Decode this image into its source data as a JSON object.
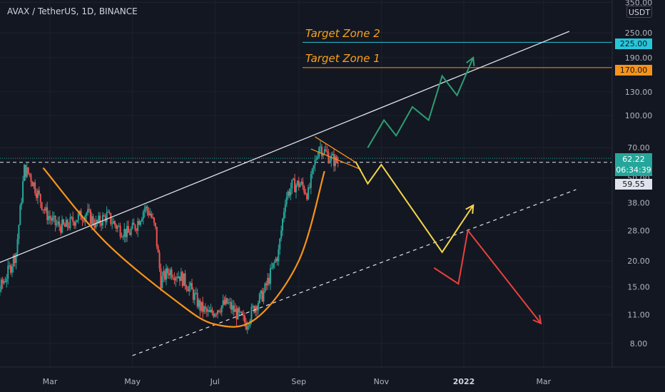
{
  "header": {
    "symbol_title": "AVAX / TetherUS, 1D, BINANCE",
    "currency_badge": "USDT"
  },
  "annotations": {
    "target_zone_2": {
      "label": "Target Zone 2",
      "price": 225.0,
      "color": "#26c6da"
    },
    "target_zone_1": {
      "label": "Target Zone 1",
      "price": 170.0,
      "color": "#f7931a"
    }
  },
  "price_tags": {
    "target2": "225.00",
    "target1": "170.00",
    "last_price": "62.22",
    "countdown": "06:34:39",
    "prev_level": "59.55"
  },
  "colors": {
    "background": "#131722",
    "up_candle": "#26a69a",
    "down_candle": "#ef5350",
    "cup_curve": "#f7931a",
    "channel_line": "#e0e3eb",
    "path_bull": "#2e9e73",
    "path_base": "#f6d54a",
    "path_bear": "#e8413d"
  },
  "chart_data": {
    "type": "candlestick",
    "title": "AVAX / TetherUS, 1D, BINANCE",
    "y_scale": "log",
    "ylim": [
      7,
      350
    ],
    "y_ticks": [
      350,
      250,
      190,
      130,
      100,
      70,
      50,
      38,
      28,
      20,
      15,
      11,
      8
    ],
    "y_tick_labels": [
      "350.00",
      "250.00",
      "190.00",
      "130.00",
      "100.00",
      "70.00",
      "50.00",
      "38.00",
      "28.00",
      "20.00",
      "15.00",
      "11.00",
      "8.00"
    ],
    "x_ticks": [
      {
        "label": "Mar",
        "date": "2021-03-01"
      },
      {
        "label": "May",
        "date": "2021-05-01"
      },
      {
        "label": "Jul",
        "date": "2021-07-01"
      },
      {
        "label": "Sep",
        "date": "2021-09-01"
      },
      {
        "label": "Nov",
        "date": "2021-11-01"
      },
      {
        "label": "2022",
        "date": "2022-01-01"
      },
      {
        "label": "Mar",
        "date": "2022-03-01"
      }
    ],
    "xlim": [
      "2021-01-04",
      "2022-04-18"
    ],
    "last_price": 62.22,
    "horizontal_levels": [
      225.0,
      170.0,
      62.22,
      59.55
    ],
    "price_path": [
      [
        "2021-01-04",
        13.0
      ],
      [
        "2021-01-12",
        12.0
      ],
      [
        "2021-01-20",
        13.5
      ],
      [
        "2021-01-28",
        17.0
      ],
      [
        "2021-02-04",
        22.0
      ],
      [
        "2021-02-10",
        55.0
      ],
      [
        "2021-02-14",
        52.0
      ],
      [
        "2021-02-20",
        42.0
      ],
      [
        "2021-02-26",
        34.0
      ],
      [
        "2021-03-05",
        30.0
      ],
      [
        "2021-03-12",
        29.0
      ],
      [
        "2021-03-20",
        32.0
      ],
      [
        "2021-03-28",
        34.0
      ],
      [
        "2021-04-04",
        30.0
      ],
      [
        "2021-04-12",
        33.0
      ],
      [
        "2021-04-20",
        29.0
      ],
      [
        "2021-04-28",
        27.0
      ],
      [
        "2021-05-04",
        30.0
      ],
      [
        "2021-05-10",
        36.0
      ],
      [
        "2021-05-14",
        34.0
      ],
      [
        "2021-05-18",
        28.0
      ],
      [
        "2021-05-22",
        16.0
      ],
      [
        "2021-05-28",
        18.0
      ],
      [
        "2021-06-05",
        17.0
      ],
      [
        "2021-06-12",
        15.0
      ],
      [
        "2021-06-20",
        12.0
      ],
      [
        "2021-06-27",
        11.0
      ],
      [
        "2021-07-04",
        12.0
      ],
      [
        "2021-07-10",
        12.5
      ],
      [
        "2021-07-18",
        11.0
      ],
      [
        "2021-07-24",
        10.0
      ],
      [
        "2021-07-30",
        12.0
      ],
      [
        "2021-08-06",
        14.0
      ],
      [
        "2021-08-12",
        18.0
      ],
      [
        "2021-08-17",
        22.0
      ],
      [
        "2021-08-22",
        40.0
      ],
      [
        "2021-08-27",
        46.0
      ],
      [
        "2021-09-02",
        47.0
      ],
      [
        "2021-09-08",
        42.0
      ],
      [
        "2021-09-12",
        56.0
      ],
      [
        "2021-09-16",
        72.0
      ],
      [
        "2021-09-20",
        67.0
      ],
      [
        "2021-09-25",
        62.0
      ],
      [
        "2021-09-30",
        59.55
      ]
    ],
    "overlays": {
      "rising_channel_upper": {
        "from": [
          "2021-01-04",
          17.5
        ],
        "to": [
          "2022-03-20",
          254.0
        ]
      },
      "rising_support_dashed": {
        "from": [
          "2021-05-01",
          7.0
        ],
        "to": [
          "2022-03-25",
          44.0
        ]
      },
      "cup_curve": [
        [
          "2021-02-24",
          56.0
        ],
        [
          "2021-04-10",
          25.0
        ],
        [
          "2021-06-01",
          13.0
        ],
        [
          "2021-07-01",
          9.9
        ],
        [
          "2021-07-31",
          10.5
        ],
        [
          "2021-09-01",
          20.0
        ],
        [
          "2021-09-20",
          54.0
        ]
      ],
      "flag_upper": {
        "from": [
          "2021-09-13",
          79.0
        ],
        "to": [
          "2021-10-14",
          59.0
        ]
      },
      "flag_lower": {
        "from": [
          "2021-09-10",
          69.0
        ],
        "to": [
          "2021-10-17",
          55.0
        ]
      }
    },
    "scenarios": [
      {
        "name": "bull",
        "points": [
          [
            "2021-10-22",
            70
          ],
          [
            "2021-11-03",
            95
          ],
          [
            "2021-11-12",
            80
          ],
          [
            "2021-11-24",
            110
          ],
          [
            "2021-12-06",
            95
          ],
          [
            "2021-12-16",
            155
          ],
          [
            "2021-12-27",
            125
          ],
          [
            "2022-01-08",
            190
          ]
        ]
      },
      {
        "name": "base",
        "points": [
          [
            "2021-10-13",
            60
          ],
          [
            "2021-10-22",
            47
          ],
          [
            "2021-11-01",
            58
          ],
          [
            "2021-12-16",
            22
          ],
          [
            "2022-01-08",
            37
          ]
        ]
      },
      {
        "name": "bear",
        "points": [
          [
            "2021-12-10",
            18.5
          ],
          [
            "2021-12-28",
            15.5
          ],
          [
            "2022-01-04",
            28
          ],
          [
            "2022-02-27",
            10
          ]
        ]
      }
    ]
  }
}
